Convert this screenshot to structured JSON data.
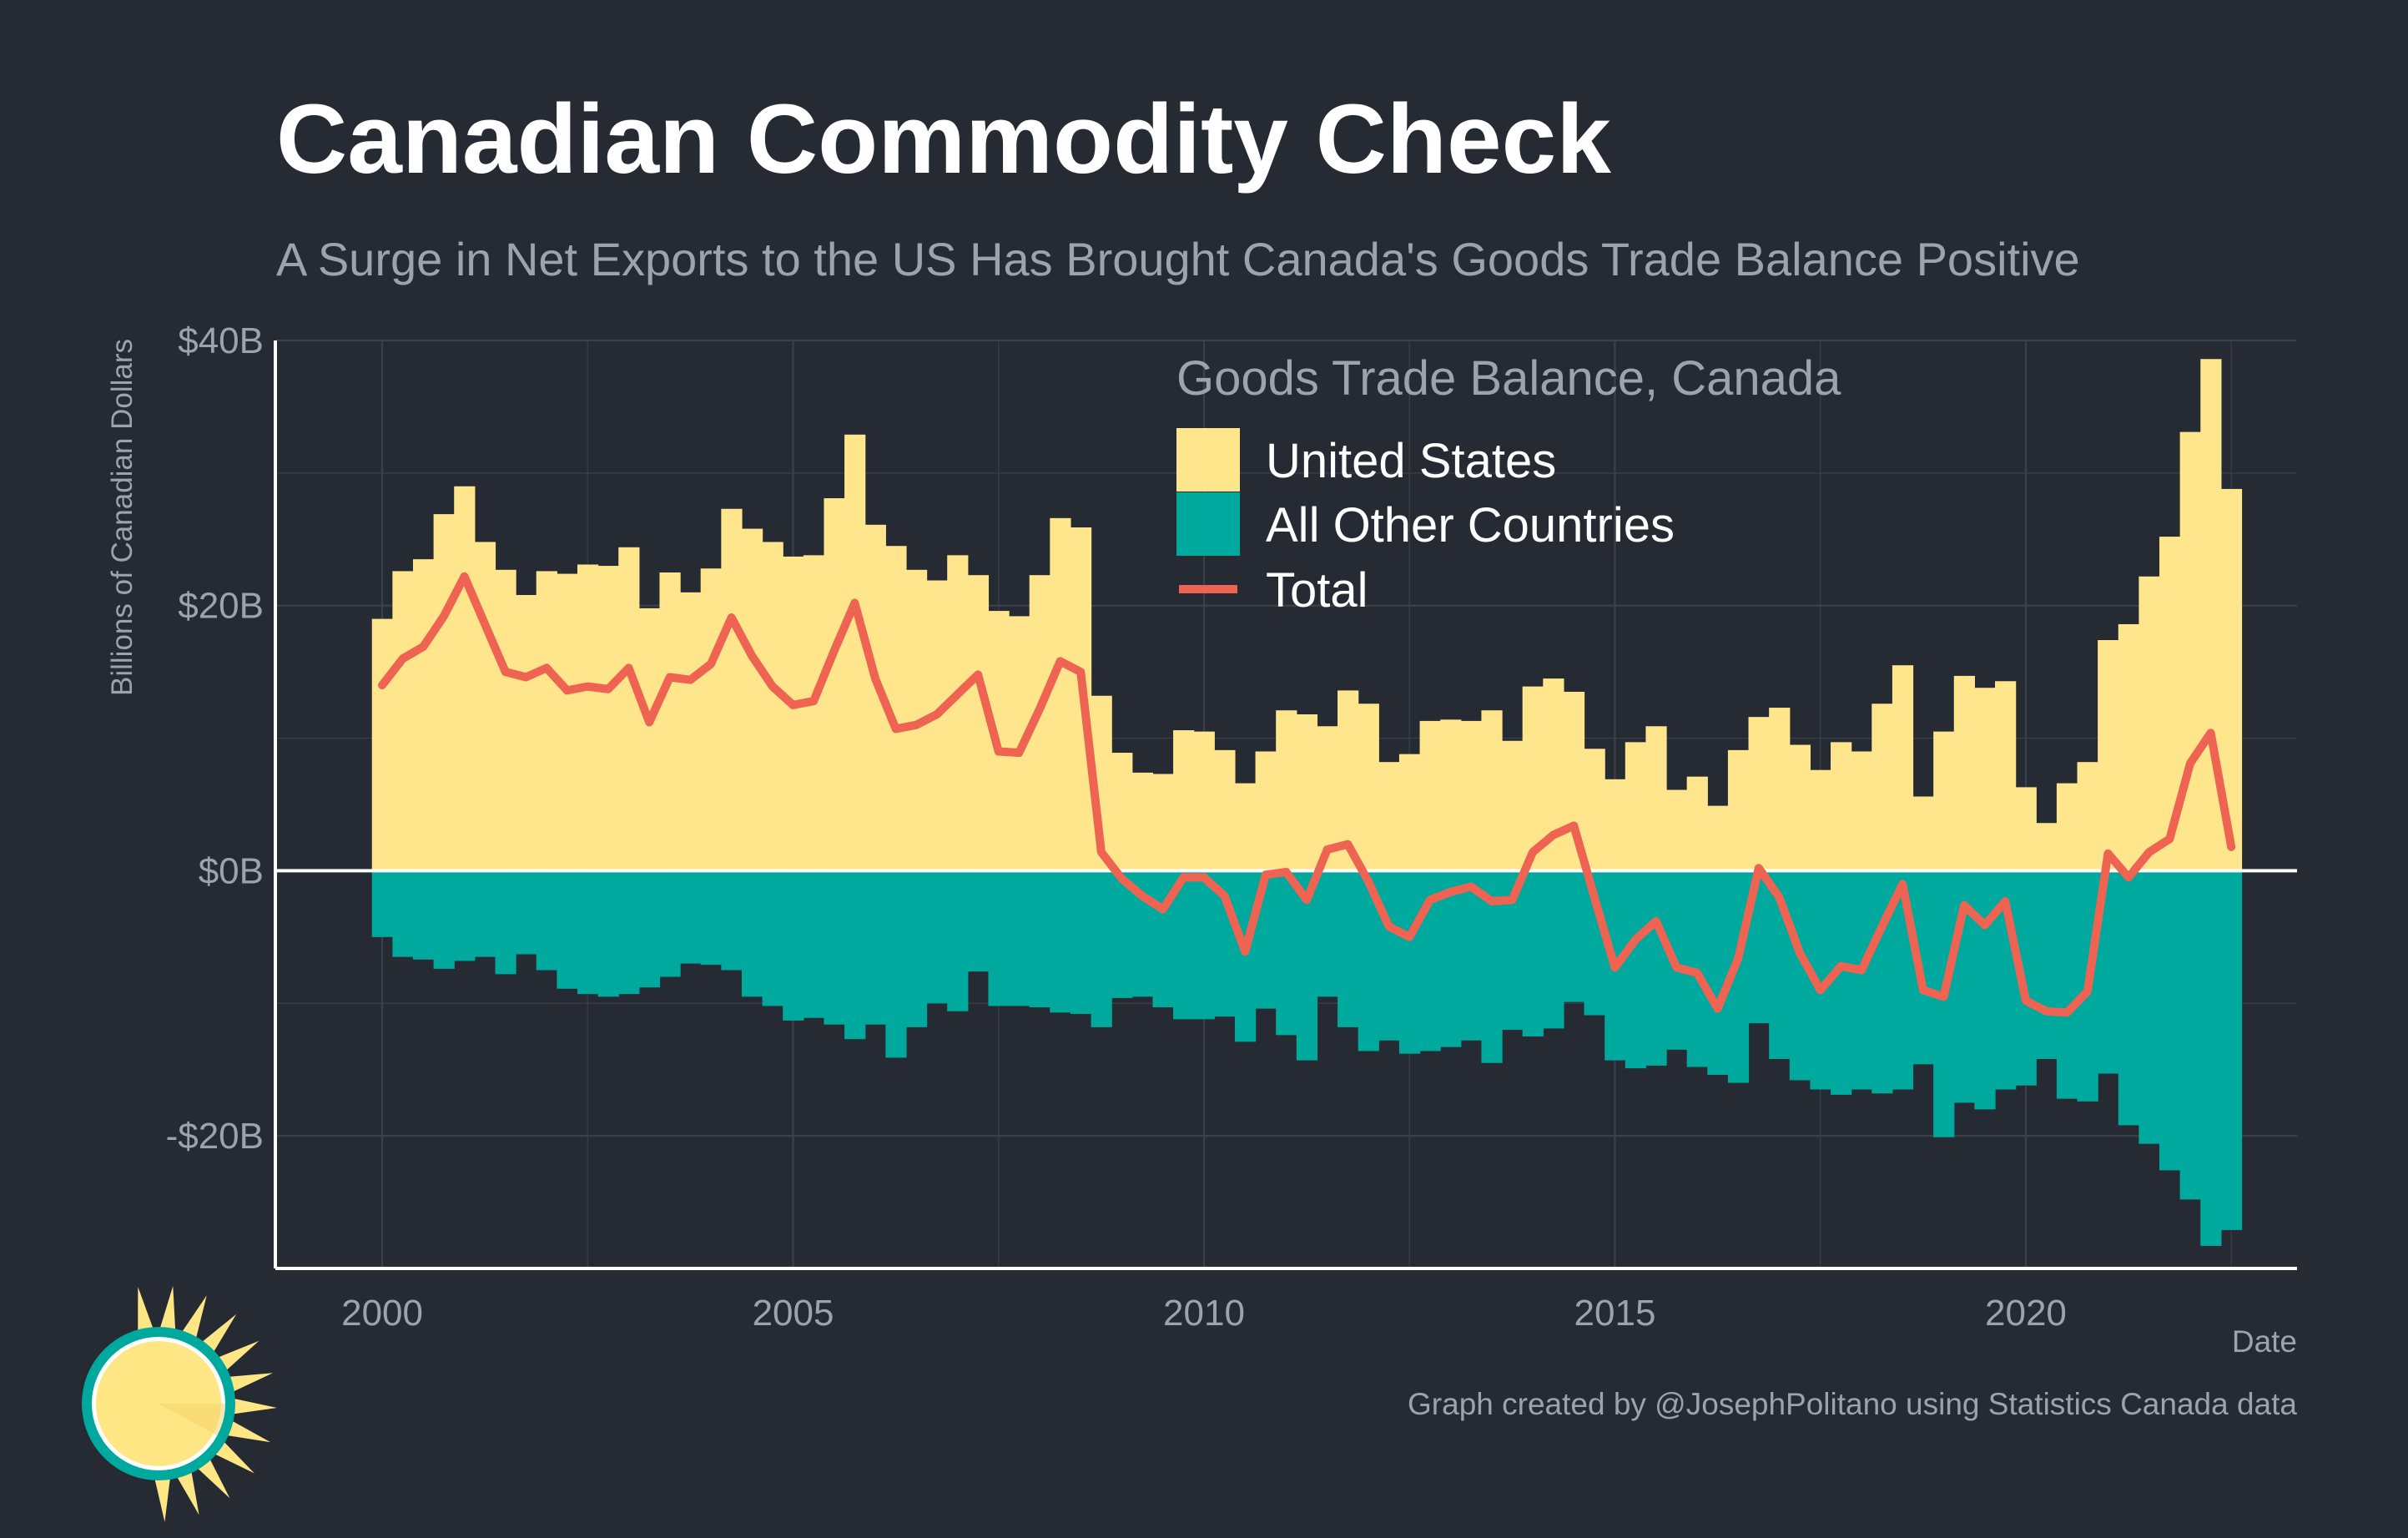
{
  "colors": {
    "background": "#252a33",
    "grid": "#3b404a",
    "us": "#ffe68c",
    "other": "#00a99d",
    "total": "#ee6352",
    "axis": "#ffffff",
    "muted_text": "#9ea3ab"
  },
  "header": {
    "title": "Canadian Commodity Check",
    "subtitle": "A Surge in Net Exports to the US Has Brought Canada's Goods Trade Balance Positive"
  },
  "footer": {
    "caption": "Graph created by @JosephPolitano using Statistics Canada data"
  },
  "logo": {
    "icon": "sun-logo-icon"
  },
  "chart_data": {
    "type": "bar",
    "ylabel": "Billions of Canadian Dollars",
    "xlabel": "Date",
    "ylim": [
      -30,
      40
    ],
    "xlim": [
      1998.7,
      2023.3
    ],
    "yticks": [
      {
        "value": 40,
        "label": "$40B"
      },
      {
        "value": 20,
        "label": "$20B"
      },
      {
        "value": 0,
        "label": "$0B"
      },
      {
        "value": -20,
        "label": "-$20B"
      }
    ],
    "xticks": [
      {
        "value": 2000,
        "label": "2000"
      },
      {
        "value": 2005,
        "label": "2005"
      },
      {
        "value": 2010,
        "label": "2010"
      },
      {
        "value": 2015,
        "label": "2015"
      },
      {
        "value": 2020,
        "label": "2020"
      }
    ],
    "grid": true,
    "legend": {
      "title": "Goods Trade Balance, Canada",
      "position": "top-right",
      "entries": [
        {
          "label": "United States",
          "key": "us",
          "shape": "box"
        },
        {
          "label": "All Other Countries",
          "key": "other",
          "shape": "box"
        },
        {
          "label": "Total",
          "key": "total",
          "shape": "line"
        }
      ]
    },
    "x_start": 2000.0,
    "x_step": 0.25,
    "series": [
      {
        "name": "United States",
        "key": "us",
        "values": [
          19.0,
          22.6,
          23.5,
          26.9,
          29.0,
          24.8,
          22.7,
          20.8,
          22.6,
          22.4,
          23.1,
          23.0,
          24.4,
          19.8,
          22.5,
          21.0,
          22.8,
          27.3,
          25.8,
          24.8,
          23.7,
          23.8,
          28.1,
          32.9,
          26.1,
          24.5,
          22.7,
          21.9,
          23.8,
          22.3,
          19.6,
          19.2,
          22.3,
          26.6,
          25.9,
          13.2,
          8.9,
          7.4,
          7.3,
          10.6,
          10.5,
          9.1,
          6.6,
          9.0,
          12.1,
          11.8,
          10.9,
          13.6,
          12.6,
          8.2,
          8.8,
          11.3,
          11.4,
          11.3,
          12.1,
          9.8,
          13.9,
          14.5,
          13.5,
          9.2,
          6.9,
          9.7,
          10.9,
          6.1,
          7.1,
          4.9,
          9.1,
          11.6,
          12.3,
          9.5,
          7.6,
          9.7,
          9.0,
          12.6,
          15.5,
          5.6,
          10.5,
          14.7,
          13.8,
          14.3,
          6.3,
          3.6,
          6.6,
          8.2,
          17.4,
          18.6,
          22.2,
          25.2,
          33.1,
          38.6,
          28.8
        ]
      },
      {
        "name": "All Other Countries",
        "key": "other",
        "values": [
          -5.0,
          -6.5,
          -6.7,
          -7.4,
          -6.8,
          -6.5,
          -7.8,
          -6.3,
          -7.5,
          -8.9,
          -9.3,
          -9.5,
          -9.3,
          -8.8,
          -8.0,
          -7.0,
          -7.1,
          -7.5,
          -9.5,
          -10.2,
          -11.3,
          -11.1,
          -11.6,
          -12.7,
          -11.6,
          -14.1,
          -11.8,
          -10.0,
          -10.6,
          -7.6,
          -10.2,
          -10.2,
          -10.3,
          -10.7,
          -10.8,
          -11.8,
          -9.6,
          -9.5,
          -10.3,
          -11.2,
          -11.2,
          -11.0,
          -12.9,
          -10.4,
          -12.4,
          -14.3,
          -9.5,
          -11.8,
          -13.6,
          -12.8,
          -13.8,
          -13.6,
          -13.3,
          -12.8,
          -14.5,
          -12.0,
          -12.5,
          -11.9,
          -9.9,
          -10.9,
          -14.3,
          -14.9,
          -14.7,
          -13.5,
          -14.8,
          -15.4,
          -16.0,
          -11.5,
          -14.2,
          -15.8,
          -16.5,
          -16.9,
          -16.5,
          -16.8,
          -16.5,
          -14.6,
          -20.1,
          -17.5,
          -18.0,
          -16.5,
          -16.2,
          -14.2,
          -17.2,
          -17.4,
          -15.3,
          -19.2,
          -20.6,
          -22.6,
          -24.8,
          -28.3,
          -27.1
        ]
      },
      {
        "name": "Total",
        "key": "total",
        "values": [
          14.0,
          16.0,
          16.9,
          19.2,
          22.2,
          18.6,
          15.0,
          14.6,
          15.3,
          13.6,
          13.9,
          13.7,
          15.3,
          11.2,
          14.6,
          14.4,
          15.6,
          19.1,
          16.2,
          13.9,
          12.5,
          12.8,
          16.6,
          20.2,
          14.5,
          10.7,
          11.0,
          11.8,
          13.3,
          14.8,
          9.0,
          8.9,
          12.2,
          15.8,
          15.0,
          1.4,
          -0.6,
          -1.9,
          -2.9,
          -0.5,
          -0.5,
          -1.9,
          -6.1,
          -0.3,
          -0.1,
          -2.2,
          1.6,
          2.0,
          -0.8,
          -4.2,
          -5.0,
          -2.2,
          -1.6,
          -1.2,
          -2.3,
          -2.2,
          1.4,
          2.7,
          3.4,
          -2.0,
          -7.3,
          -5.2,
          -3.8,
          -7.3,
          -7.7,
          -10.4,
          -6.6,
          0.2,
          -2.0,
          -6.2,
          -9.0,
          -7.2,
          -7.5,
          -4.2,
          -1.0,
          -9.0,
          -9.5,
          -2.6,
          -4.1,
          -2.3,
          -9.8,
          -10.6,
          -10.7,
          -9.1,
          1.3,
          -0.5,
          1.4,
          2.4,
          8.1,
          10.4,
          1.8
        ]
      }
    ]
  }
}
